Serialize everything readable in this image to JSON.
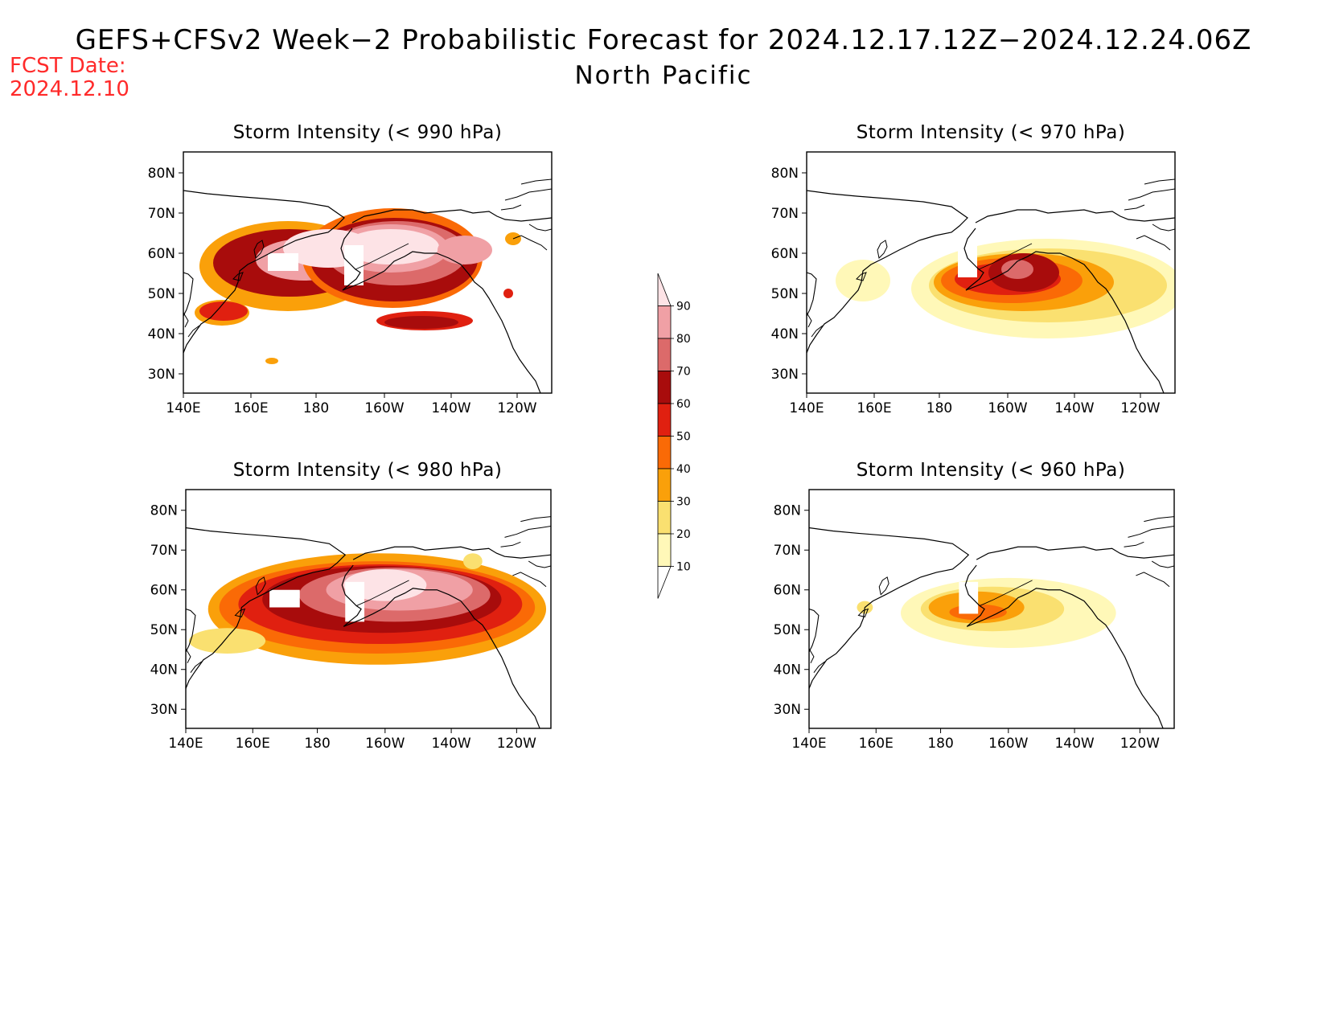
{
  "header": {
    "title": "GEFS+CFSv2 Week−2 Probabilistic Forecast for 2024.12.17.12Z−2024.12.24.06Z",
    "subtitle": "North Pacific",
    "fcst_label": "FCST Date:",
    "fcst_date": "2024.12.10"
  },
  "panels": [
    {
      "title": "Storm Intensity (< 990 hPa)"
    },
    {
      "title": "Storm Intensity (< 970 hPa)"
    },
    {
      "title": "Storm Intensity (< 980 hPa)"
    },
    {
      "title": "Storm Intensity (< 960 hPa)"
    }
  ],
  "axes": {
    "lon_ticks": [
      "140E",
      "160E",
      "180",
      "160W",
      "140W",
      "120W"
    ],
    "lat_ticks": [
      "80N",
      "70N",
      "60N",
      "50N",
      "40N",
      "30N"
    ]
  },
  "colorbar": {
    "labels": [
      "90",
      "80",
      "70",
      "60",
      "50",
      "40",
      "30",
      "20",
      "10"
    ],
    "colors": [
      "#fde3e6",
      "#f0a0a5",
      "#dc6a6a",
      "#a80c0c",
      "#e02010",
      "#fa6a06",
      "#faa00a",
      "#fae070",
      "#fff8b8"
    ]
  }
}
